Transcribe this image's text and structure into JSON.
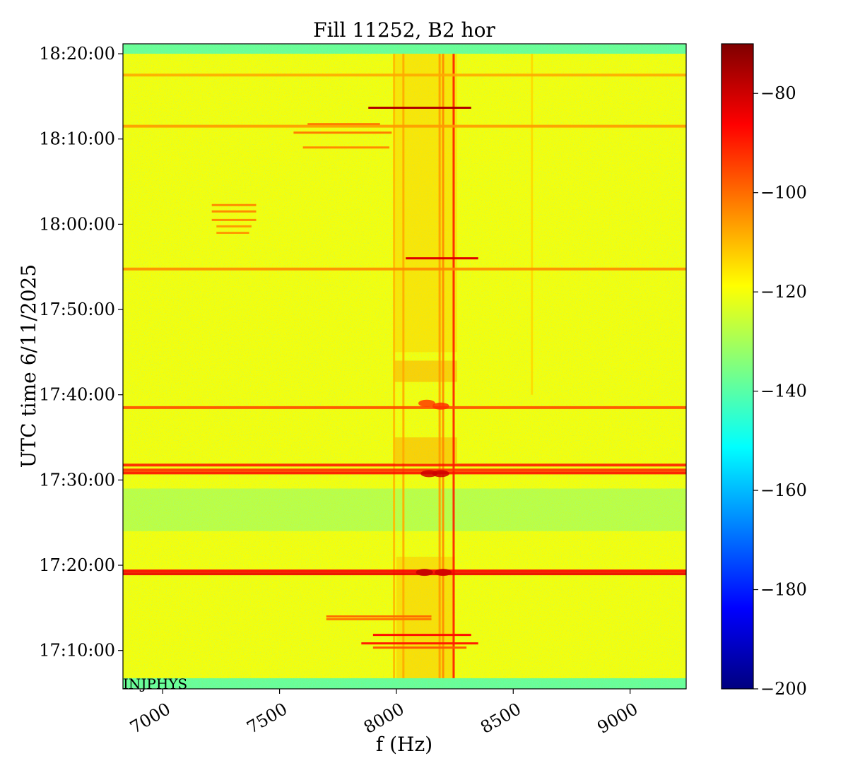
{
  "chart_data": {
    "type": "heatmap",
    "title": "Fill 11252, B2 hor",
    "xlabel": "f (Hz)",
    "ylabel": "UTC time 6/11/2025",
    "xlim": [
      6830,
      9240
    ],
    "x_ticks": [
      {
        "value": 7000,
        "label": "7000"
      },
      {
        "value": 7500,
        "label": "7500"
      },
      {
        "value": 8000,
        "label": "8000"
      },
      {
        "value": 8500,
        "label": "8500"
      },
      {
        "value": 9000,
        "label": "9000"
      }
    ],
    "ylim": [
      "17:05:30",
      "18:21:10"
    ],
    "y_ticks": [
      {
        "value": "17:10:00",
        "label": "17:10:00"
      },
      {
        "value": "17:20:00",
        "label": "17:20:00"
      },
      {
        "value": "17:30:00",
        "label": "17:30:00"
      },
      {
        "value": "17:40:00",
        "label": "17:40:00"
      },
      {
        "value": "17:50:00",
        "label": "17:50:00"
      },
      {
        "value": "18:00:00",
        "label": "18:00:00"
      },
      {
        "value": "18:10:00",
        "label": "18:10:00"
      },
      {
        "value": "18:20:00",
        "label": "18:20:00"
      }
    ],
    "colorbar": {
      "colormap": "jet",
      "min": -200,
      "max": -70,
      "ticks": [
        -80,
        -100,
        -120,
        -140,
        -160,
        -180,
        -200
      ],
      "tick_labels": [
        "−80",
        "−100",
        "−120",
        "−140",
        "−160",
        "−180",
        "−200"
      ]
    },
    "background_level": -120,
    "low_level_bands": [
      {
        "t_start": "18:20:00",
        "t_end": "18:21:10",
        "level": -140
      },
      {
        "t_start": "17:05:30",
        "t_end": "17:06:45",
        "level": -140
      },
      {
        "t_start": "17:24:00",
        "t_end": "17:29:00",
        "level": -128
      }
    ],
    "horizontal_lines": [
      {
        "t": "18:17:30",
        "level": -108
      },
      {
        "t": "18:11:30",
        "level": -106
      },
      {
        "t": "17:54:45",
        "level": -104
      },
      {
        "t": "17:38:30",
        "level": -96
      },
      {
        "t": "17:31:45",
        "level": -90
      },
      {
        "t": "17:31:10",
        "level": -92
      },
      {
        "t": "17:30:50",
        "level": -88
      },
      {
        "t": "17:19:20",
        "level": -86
      },
      {
        "t": "17:19:00",
        "level": -84
      }
    ],
    "vertical_lines": [
      {
        "f": 8245,
        "t_start": "17:06:45",
        "t_end": "18:20:00",
        "level": -90
      },
      {
        "f": 8200,
        "t_start": "17:06:45",
        "t_end": "18:20:00",
        "level": -104
      },
      {
        "f": 8185,
        "t_start": "17:06:45",
        "t_end": "18:20:00",
        "level": -106
      },
      {
        "f": 8030,
        "t_start": "17:06:45",
        "t_end": "18:20:00",
        "level": -108
      },
      {
        "f": 7990,
        "t_start": "17:06:45",
        "t_end": "18:20:00",
        "level": -110
      },
      {
        "f": 8580,
        "t_start": "17:40:00",
        "t_end": "18:20:00",
        "level": -114
      }
    ],
    "segments": [
      {
        "f_start": 7880,
        "f_end": 8320,
        "t": "18:13:40",
        "level": -76
      },
      {
        "f_start": 8040,
        "f_end": 8350,
        "t": "17:56:00",
        "level": -82
      },
      {
        "f_start": 7620,
        "f_end": 7930,
        "t": "18:11:45",
        "level": -102
      },
      {
        "f_start": 7560,
        "f_end": 7980,
        "t": "18:10:45",
        "level": -102
      },
      {
        "f_start": 7600,
        "f_end": 7970,
        "t": "18:09:00",
        "level": -104
      },
      {
        "f_start": 7210,
        "f_end": 7400,
        "t": "18:02:15",
        "level": -104
      },
      {
        "f_start": 7210,
        "f_end": 7400,
        "t": "18:01:30",
        "level": -104
      },
      {
        "f_start": 7210,
        "f_end": 7400,
        "t": "18:00:30",
        "level": -104
      },
      {
        "f_start": 7230,
        "f_end": 7380,
        "t": "17:59:45",
        "level": -106
      },
      {
        "f_start": 7230,
        "f_end": 7370,
        "t": "17:59:00",
        "level": -106
      },
      {
        "f_start": 7700,
        "f_end": 8150,
        "t": "17:14:00",
        "level": -100
      },
      {
        "f_start": 7700,
        "f_end": 8150,
        "t": "17:13:40",
        "level": -102
      },
      {
        "f_start": 7900,
        "f_end": 8320,
        "t": "17:11:50",
        "level": -88
      },
      {
        "f_start": 7850,
        "f_end": 8350,
        "t": "17:10:50",
        "level": -90
      },
      {
        "f_start": 7900,
        "f_end": 8300,
        "t": "17:10:20",
        "level": -98
      }
    ],
    "patches": [
      {
        "f_start": 7990,
        "f_end": 8260,
        "t_start": "17:41:30",
        "t_end": "17:44:00",
        "level": -106
      },
      {
        "f_start": 7990,
        "f_end": 8260,
        "t_start": "17:32:00",
        "t_end": "17:35:00",
        "level": -106
      },
      {
        "f_start": 8000,
        "f_end": 8250,
        "t_start": "17:06:45",
        "t_end": "17:21:00",
        "level": -110
      },
      {
        "f_start": 7990,
        "f_end": 8260,
        "t_start": "17:45:00",
        "t_end": "18:20:00",
        "level": -112
      }
    ],
    "hotspots": [
      {
        "f": 8130,
        "t": "17:39:00",
        "level": -94
      },
      {
        "f": 8190,
        "t": "17:38:40",
        "level": -92
      },
      {
        "f": 8140,
        "t": "17:30:45",
        "level": -80
      },
      {
        "f": 8190,
        "t": "17:30:45",
        "level": -80
      },
      {
        "f": 8120,
        "t": "17:19:10",
        "level": -78
      },
      {
        "f": 8200,
        "t": "17:19:10",
        "level": -80
      }
    ]
  },
  "watermark": "INJPHYS"
}
